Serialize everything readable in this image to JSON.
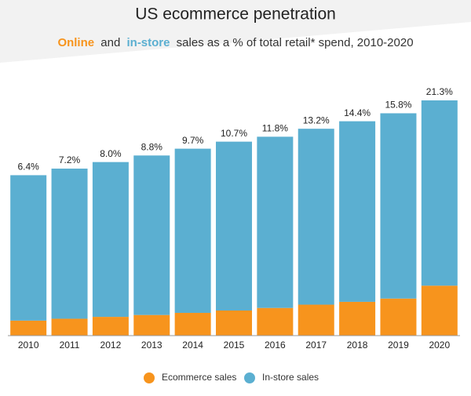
{
  "chart_data": {
    "type": "stacked-bar",
    "title": "US ecommerce penetration",
    "subtitle": [
      "Online",
      "and",
      "in-store",
      "sales as a % of total retail* spend, 2010-2020"
    ],
    "categories": [
      "2010",
      "2011",
      "2012",
      "2013",
      "2014",
      "2015",
      "2016",
      "2017",
      "2018",
      "2019",
      "2020"
    ],
    "series": [
      {
        "name": "Ecommerce sales",
        "color": "#f7941d",
        "values": [
          6.4,
          7.2,
          8.0,
          8.8,
          9.7,
          10.7,
          11.8,
          13.2,
          14.4,
          15.8,
          21.3
        ],
        "value_labels": [
          "6.4%",
          "7.2%",
          "8.0%",
          "8.8%",
          "9.7%",
          "10.7%",
          "11.8%",
          "13.2%",
          "14.4%",
          "15.8%",
          "21.3%"
        ]
      },
      {
        "name": "In-store sales",
        "color": "#5bafd1",
        "values": [
          62,
          64,
          66,
          68,
          70,
          72,
          73,
          75,
          77,
          79,
          79
        ]
      }
    ]
  }
}
